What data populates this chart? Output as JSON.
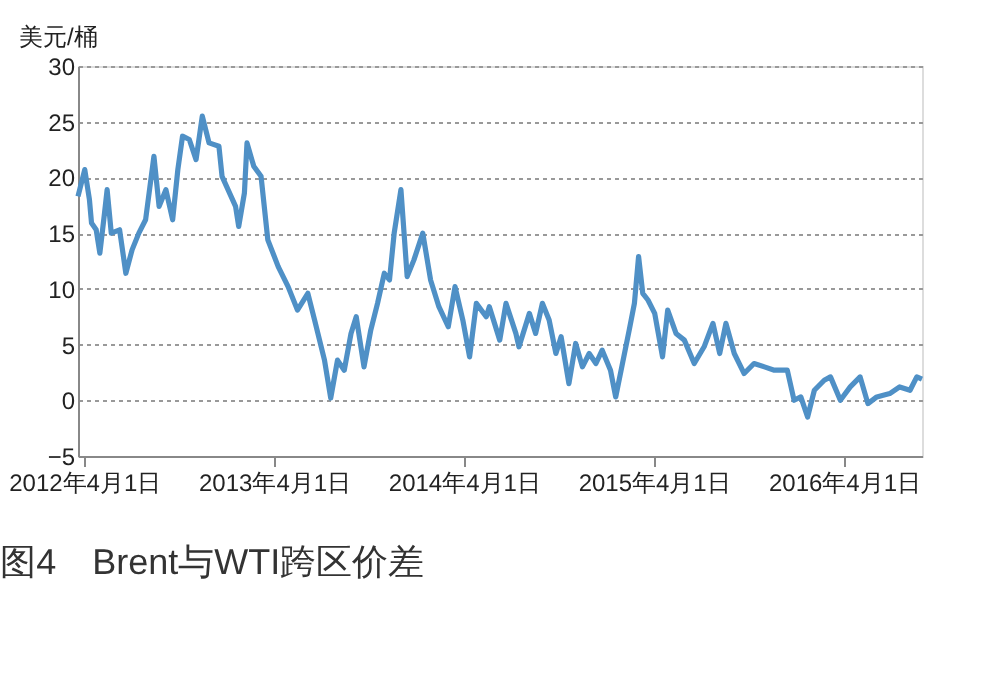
{
  "chart_data": {
    "type": "line",
    "title": "图4　Brent与WTI跨区价差",
    "ylabel": "美元/桶",
    "x": [
      "2012-03-20",
      "2012-04-02",
      "2012-04-11",
      "2012-04-15",
      "2012-04-24",
      "2012-05-01",
      "2012-05-10",
      "2012-05-15",
      "2012-05-23",
      "2012-06-08",
      "2012-06-20",
      "2012-07-02",
      "2012-07-15",
      "2012-07-28",
      "2012-08-13",
      "2012-08-23",
      "2012-09-05",
      "2012-09-18",
      "2012-09-28",
      "2012-10-07",
      "2012-10-20",
      "2012-11-02",
      "2012-11-14",
      "2012-11-27",
      "2012-12-16",
      "2012-12-22",
      "2013-01-17",
      "2013-01-23",
      "2013-02-03",
      "2013-02-08",
      "2013-02-21",
      "2013-03-07",
      "2013-03-20",
      "2013-04-09",
      "2013-04-28",
      "2013-05-16",
      "2013-06-05",
      "2013-06-18",
      "2013-07-07",
      "2013-07-19",
      "2013-08-01",
      "2013-08-14",
      "2013-08-27",
      "2013-09-06",
      "2013-09-21",
      "2013-10-04",
      "2013-10-17",
      "2013-10-30",
      "2013-11-09",
      "2013-11-18",
      "2013-12-01",
      "2013-12-13",
      "2013-12-26",
      "2014-01-12",
      "2014-01-27",
      "2014-02-12",
      "2014-03-02",
      "2014-03-15",
      "2014-03-30",
      "2014-04-12",
      "2014-04-25",
      "2014-05-14",
      "2014-05-20",
      "2014-06-09",
      "2014-06-21",
      "2014-07-10",
      "2014-07-16",
      "2014-08-05",
      "2014-08-17",
      "2014-08-30",
      "2014-09-12",
      "2014-09-25",
      "2014-10-05",
      "2014-10-20",
      "2014-11-02",
      "2014-11-15",
      "2014-11-28",
      "2014-12-11",
      "2014-12-23",
      "2015-01-08",
      "2015-01-18",
      "2015-01-31",
      "2015-02-13",
      "2015-02-23",
      "2015-03-03",
      "2015-03-11",
      "2015-03-21",
      "2015-04-03",
      "2015-04-18",
      "2015-04-28",
      "2015-05-14",
      "2015-05-30",
      "2015-06-18",
      "2015-07-07",
      "2015-07-24",
      "2015-08-06",
      "2015-08-18",
      "2015-09-03",
      "2015-09-22",
      "2015-10-11",
      "2015-10-31",
      "2015-11-19",
      "2015-12-14",
      "2015-12-27",
      "2016-01-09",
      "2016-01-22",
      "2016-02-04",
      "2016-02-23",
      "2016-03-06",
      "2016-03-25",
      "2016-04-13",
      "2016-05-02",
      "2016-05-17",
      "2016-06-03",
      "2016-06-28",
      "2016-07-17",
      "2016-08-06",
      "2016-08-19",
      "2016-08-29"
    ],
    "series": [
      {
        "color": "#4f90c6",
        "values": [
          18.3,
          20.7,
          18,
          15.9,
          15.3,
          13.2,
          16.8,
          18.9,
          15,
          15.3,
          11.4,
          13.5,
          15,
          16.2,
          21.9,
          17.4,
          18.9,
          16.2,
          20.7,
          23.7,
          23.4,
          21.6,
          25.5,
          23.1,
          22.8,
          20.1,
          17.4,
          15.6,
          18.6,
          23.1,
          21,
          20.1,
          14.4,
          12,
          10.2,
          8.1,
          9.6,
          7.2,
          3.6,
          0.2,
          3.6,
          2.7,
          6,
          7.5,
          3,
          6.3,
          8.7,
          11.4,
          10.8,
          15,
          18.9,
          11.1,
          12.6,
          15,
          10.8,
          8.4,
          6.6,
          10.2,
          7.2,
          3.9,
          8.7,
          7.5,
          8.4,
          5.4,
          8.7,
          6,
          4.8,
          7.8,
          6,
          8.7,
          7.2,
          4.2,
          5.7,
          1.5,
          5.1,
          3,
          4.2,
          3.3,
          4.5,
          2.7,
          0.3,
          3.3,
          6.3,
          8.7,
          12.9,
          9.6,
          9,
          7.8,
          3.9,
          8.1,
          6,
          5.4,
          3.3,
          4.8,
          6.9,
          4.2,
          6.9,
          4.2,
          2.4,
          3.3,
          3,
          2.7,
          2.7,
          0,
          0.3,
          -1.5,
          0.9,
          1.8,
          2.1,
          0,
          1.2,
          2.1,
          -0.3,
          0.3,
          0.6,
          1.2,
          0.9,
          2.1,
          1.9
        ]
      }
    ],
    "xlim": [
      "2012-03-20",
      "2016-08-29"
    ],
    "xticks": [
      {
        "value": "2012-04-01",
        "label": "2012年4月1日"
      },
      {
        "value": "2013-04-01",
        "label": "2013年4月1日"
      },
      {
        "value": "2014-04-01",
        "label": "2014年4月1日"
      },
      {
        "value": "2015-04-01",
        "label": "2015年4月1日"
      },
      {
        "value": "2016-04-01",
        "label": "2016年4月1日"
      }
    ],
    "ylim": [
      -5,
      30
    ],
    "yticks": [
      -5,
      0,
      5,
      10,
      15,
      20,
      25,
      30
    ],
    "grid": "y",
    "legend": false,
    "line_style": "solid",
    "marker": "none"
  }
}
